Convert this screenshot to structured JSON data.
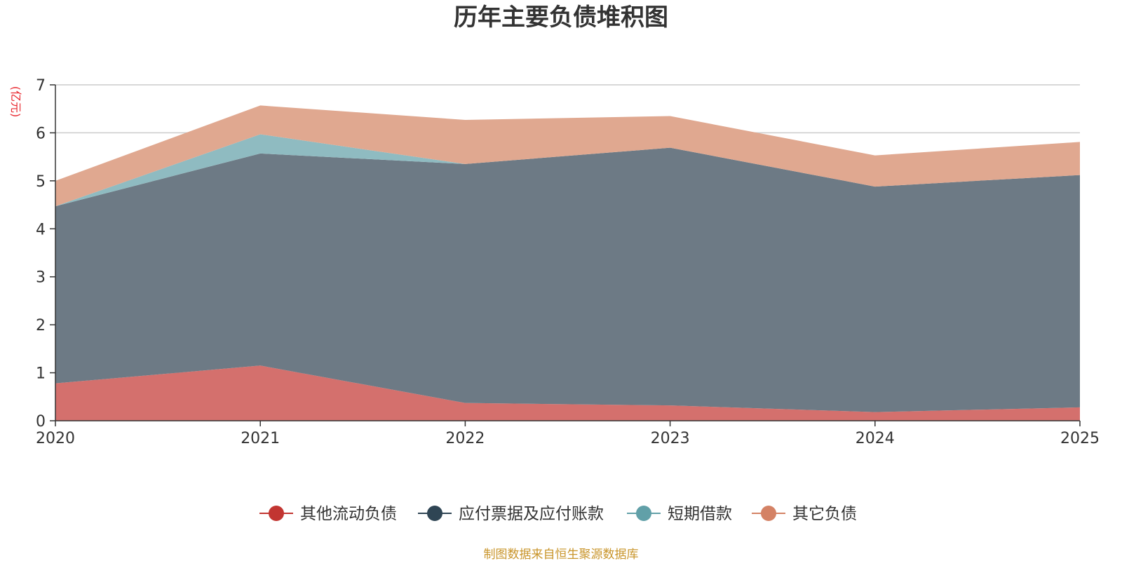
{
  "chart_data": {
    "type": "area",
    "stacked": true,
    "title": "历年主要负债堆积图",
    "ylabel": "(亿元)",
    "xlabel": "",
    "categories": [
      "2020",
      "2021",
      "2022",
      "2023",
      "2024",
      "2025"
    ],
    "ylim": [
      0,
      7
    ],
    "yticks": [
      0,
      1,
      2,
      3,
      4,
      5,
      6,
      7
    ],
    "grid": true,
    "legend_position": "bottom",
    "series": [
      {
        "name": "其他流动负债",
        "color": "#c23531",
        "fill": "#d4706d",
        "values": [
          0.78,
          1.15,
          0.37,
          0.32,
          0.18,
          0.28
        ]
      },
      {
        "name": "应付票据及应付账款",
        "color": "#2f4554",
        "fill": "#6d7a85",
        "values": [
          3.69,
          4.42,
          4.98,
          5.37,
          4.7,
          4.84
        ]
      },
      {
        "name": "短期借款",
        "color": "#61a0a8",
        "fill": "#8fbbc1",
        "values": [
          0.0,
          0.4,
          0.0,
          0.0,
          0.0,
          0.0
        ]
      },
      {
        "name": "其它负债",
        "color": "#d48265",
        "fill": "#e0a890",
        "values": [
          0.53,
          0.6,
          0.92,
          0.66,
          0.65,
          0.69
        ]
      }
    ]
  },
  "footer": {
    "source": "制图数据来自恒生聚源数据库"
  }
}
